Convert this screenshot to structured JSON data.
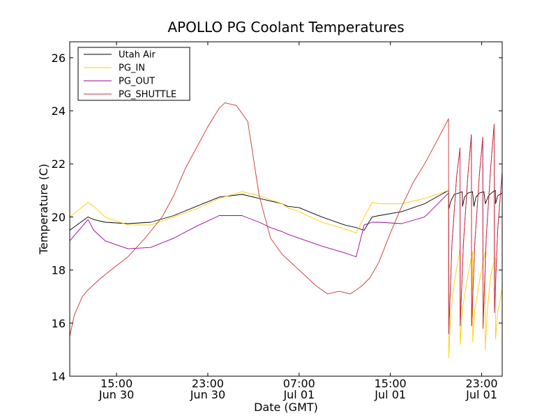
{
  "chart_data": {
    "type": "line",
    "title": "APOLLO PG Coolant Temperatures",
    "xlabel": "Date (GMT)",
    "ylabel": "Temperature (C)",
    "x_unit": "hours since Jun 30 00:00 GMT",
    "xlim": [
      10.9,
      48.8
    ],
    "ylim": [
      14,
      26.6
    ],
    "yticks": [
      14,
      16,
      18,
      20,
      22,
      24,
      26
    ],
    "xticks": [
      {
        "x": 15,
        "line1": "15:00",
        "line2": "Jun 30"
      },
      {
        "x": 23,
        "line1": "23:00",
        "line2": "Jun 30"
      },
      {
        "x": 31,
        "line1": "07:00",
        "line2": "Jul 01"
      },
      {
        "x": 39,
        "line1": "15:00",
        "line2": "Jul 01"
      },
      {
        "x": 47,
        "line1": "23:00",
        "line2": "Jul 01"
      }
    ],
    "legend_position": "top-left",
    "series": [
      {
        "name": "Utah Air",
        "color": "#000000",
        "x": [
          10.9,
          12.5,
          13.0,
          14.0,
          16.0,
          18.0,
          20.0,
          22.0,
          24.0,
          26.0,
          27.5,
          28.5,
          29.5,
          30.0,
          31.0,
          33.0,
          35.0,
          36.0,
          36.7,
          37.4,
          38.0,
          40.0,
          42.0,
          44.1,
          44.12,
          44.3,
          44.6,
          45.0,
          45.3,
          45.32,
          45.5,
          45.8,
          46.2,
          46.32,
          46.5,
          46.8,
          47.2,
          47.32,
          47.6,
          48.0,
          48.2,
          48.22,
          48.4,
          48.8
        ],
        "y": [
          19.5,
          20.0,
          19.9,
          19.8,
          19.75,
          19.8,
          20.05,
          20.4,
          20.75,
          20.85,
          20.7,
          20.6,
          20.5,
          20.4,
          20.35,
          20.0,
          19.7,
          19.6,
          19.5,
          20.0,
          20.05,
          20.2,
          20.5,
          21.0,
          20.3,
          20.6,
          20.85,
          20.9,
          20.95,
          20.4,
          20.75,
          20.9,
          20.95,
          20.4,
          20.75,
          20.9,
          20.95,
          20.5,
          20.8,
          20.95,
          21.0,
          20.5,
          20.8,
          20.9
        ]
      },
      {
        "name": "PG_IN",
        "color": "#ffcc00",
        "x": [
          10.9,
          12.5,
          13.0,
          14.0,
          16.0,
          18.0,
          20.0,
          22.0,
          24.0,
          26.0,
          27.5,
          28.5,
          29.5,
          30.0,
          31.0,
          33.0,
          35.0,
          36.0,
          36.7,
          37.4,
          38.0,
          40.0,
          42.0,
          44.1,
          44.12,
          44.3,
          44.7,
          45.1,
          45.12,
          45.3,
          45.8,
          46.2,
          46.22,
          46.4,
          46.9,
          47.3,
          47.32,
          47.5,
          47.8,
          48.2,
          48.22,
          48.4,
          48.8
        ],
        "y": [
          20.0,
          20.55,
          20.4,
          20.0,
          19.7,
          19.7,
          20.0,
          20.3,
          20.7,
          20.95,
          20.8,
          20.65,
          20.5,
          20.35,
          20.2,
          19.8,
          19.55,
          19.4,
          20.0,
          20.55,
          20.5,
          20.5,
          20.7,
          21.0,
          14.7,
          16.5,
          17.8,
          18.8,
          15.2,
          16.5,
          17.8,
          18.7,
          15.3,
          16.5,
          17.8,
          18.7,
          15.0,
          16.5,
          17.8,
          18.5,
          15.4,
          16.4,
          17.3
        ]
      },
      {
        "name": "PG_OUT",
        "color": "#990099",
        "x": [
          10.9,
          12.5,
          13.0,
          14.0,
          16.0,
          18.0,
          20.0,
          22.0,
          24.0,
          26.0,
          27.5,
          28.5,
          29.5,
          30.0,
          31.0,
          33.0,
          35.0,
          36.0,
          36.7,
          37.4,
          38.0,
          40.0,
          42.0,
          44.1,
          44.12,
          44.4,
          44.8,
          45.1,
          45.12,
          45.4,
          45.8,
          46.1,
          46.12,
          46.4,
          46.8,
          47.1,
          47.12,
          47.4,
          47.8,
          48.1,
          48.12,
          48.4,
          48.8
        ],
        "y": [
          19.1,
          19.9,
          19.5,
          19.1,
          18.8,
          18.85,
          19.2,
          19.65,
          20.05,
          20.05,
          19.8,
          19.6,
          19.45,
          19.35,
          19.2,
          18.9,
          18.65,
          18.5,
          19.7,
          19.8,
          19.8,
          19.75,
          20.0,
          20.9,
          15.6,
          19.0,
          21.5,
          22.6,
          15.9,
          19.0,
          21.6,
          23.1,
          15.9,
          19.0,
          21.6,
          23.0,
          15.8,
          19.2,
          21.9,
          23.5,
          16.4,
          19.5,
          21.7
        ]
      },
      {
        "name": "PG_SHUTTLE",
        "color": "#cc3333",
        "x": [
          10.9,
          11.3,
          12.0,
          12.5,
          13.5,
          14.5,
          16.0,
          17.5,
          19.0,
          20.0,
          21.0,
          22.0,
          23.0,
          24.0,
          24.5,
          25.5,
          26.5,
          27.5,
          28.5,
          29.5,
          30.5,
          31.5,
          32.5,
          33.5,
          34.5,
          35.5,
          36.5,
          37.2,
          38.0,
          39.0,
          40.0,
          41.0,
          42.0,
          43.0,
          44.1,
          44.12,
          44.4,
          44.8,
          45.1,
          45.12,
          45.4,
          45.8,
          46.1,
          46.12,
          46.4,
          46.8,
          47.1,
          47.12,
          47.4,
          47.8,
          48.1,
          48.12,
          48.4,
          48.8
        ],
        "y": [
          15.5,
          16.3,
          17.0,
          17.25,
          17.65,
          18.0,
          18.5,
          19.2,
          20.0,
          20.8,
          21.8,
          22.6,
          23.4,
          24.1,
          24.3,
          24.2,
          23.6,
          20.8,
          19.2,
          18.6,
          18.2,
          17.8,
          17.4,
          17.1,
          17.2,
          17.1,
          17.4,
          17.7,
          18.3,
          19.4,
          20.4,
          21.3,
          22.0,
          22.8,
          23.7,
          15.7,
          19.0,
          21.5,
          22.6,
          15.9,
          19.0,
          21.6,
          23.1,
          15.9,
          19.0,
          21.6,
          23.0,
          15.8,
          19.2,
          21.9,
          23.5,
          16.4,
          19.5,
          21.7
        ]
      }
    ]
  }
}
